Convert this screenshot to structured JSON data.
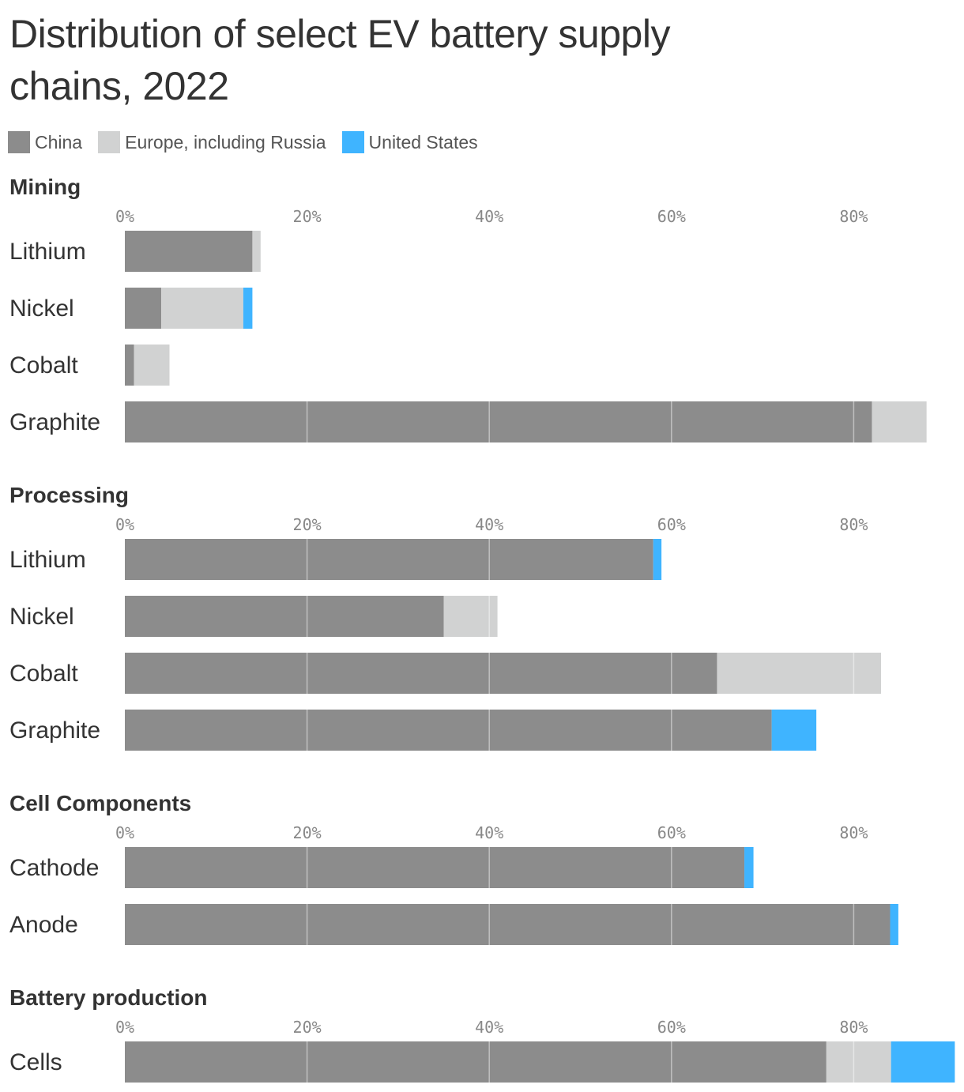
{
  "header": {
    "title": "Distribution of select EV battery supply chains, 2022"
  },
  "legend": [
    {
      "label": "China",
      "color": "#8c8c8c"
    },
    {
      "label": "Europe, including Russia",
      "color": "#d1d2d2"
    },
    {
      "label": "United States",
      "color": "#3fb4ff"
    }
  ],
  "chart_data": {
    "type": "bar",
    "orientation": "horizontal",
    "stacked": true,
    "title": "Distribution of select EV battery supply chains, 2022",
    "xlim": [
      0,
      90
    ],
    "ticks": [
      0,
      20,
      40,
      60,
      80
    ],
    "tick_labels": [
      "0%",
      "20%",
      "40%",
      "60%",
      "80%"
    ],
    "grid": true,
    "legend_position": "top-left",
    "series_names": [
      "China",
      "Europe, including Russia",
      "United States"
    ],
    "series_colors": [
      "#8c8c8c",
      "#d1d2d2",
      "#3fb4ff"
    ],
    "sections": [
      {
        "name": "Mining",
        "categories": [
          "Lithium",
          "Nickel",
          "Cobalt",
          "Graphite"
        ],
        "series": [
          {
            "name": "China",
            "values": [
              14,
              4,
              1,
              82
            ]
          },
          {
            "name": "Europe, including Russia",
            "values": [
              0.9,
              9,
              3.9,
              6
            ]
          },
          {
            "name": "United States",
            "values": [
              0,
              1,
              0,
              0
            ]
          }
        ]
      },
      {
        "name": "Processing",
        "categories": [
          "Lithium",
          "Nickel",
          "Cobalt",
          "Graphite"
        ],
        "series": [
          {
            "name": "China",
            "values": [
              58,
              35,
              65,
              71
            ]
          },
          {
            "name": "Europe, including Russia",
            "values": [
              0,
              5.9,
              18,
              0
            ]
          },
          {
            "name": "United States",
            "values": [
              0.9,
              0,
              0,
              4.9
            ]
          }
        ]
      },
      {
        "name": "Cell Components",
        "categories": [
          "Cathode",
          "Anode"
        ],
        "series": [
          {
            "name": "China",
            "values": [
              68,
              84
            ]
          },
          {
            "name": "Europe, including Russia",
            "values": [
              0,
              0
            ]
          },
          {
            "name": "United States",
            "values": [
              1,
              0.9
            ]
          }
        ]
      },
      {
        "name": "Battery production",
        "categories": [
          "Cells"
        ],
        "series": [
          {
            "name": "China",
            "values": [
              77
            ]
          },
          {
            "name": "Europe, including Russia",
            "values": [
              7.1
            ]
          },
          {
            "name": "United States",
            "values": [
              7
            ]
          }
        ]
      }
    ]
  }
}
